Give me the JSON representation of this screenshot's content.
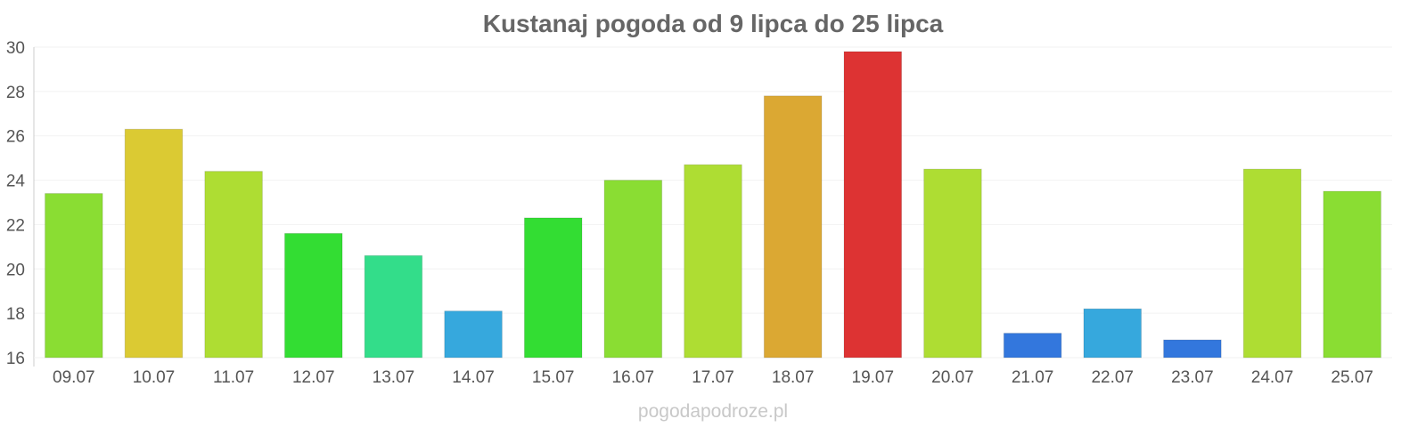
{
  "chart_data": {
    "type": "bar",
    "title": "Kustanaj pogoda od 9 lipca do 25 lipca",
    "xlabel": "",
    "ylabel": "",
    "categories": [
      "09.07",
      "10.07",
      "11.07",
      "12.07",
      "13.07",
      "14.07",
      "15.07",
      "16.07",
      "17.07",
      "18.07",
      "19.07",
      "20.07",
      "21.07",
      "22.07",
      "23.07",
      "24.07",
      "25.07"
    ],
    "values": [
      23.4,
      26.3,
      24.4,
      21.6,
      20.6,
      18.1,
      22.3,
      24.0,
      24.7,
      27.8,
      29.8,
      24.5,
      17.1,
      18.2,
      16.8,
      24.5,
      23.5
    ],
    "colors": [
      "#8add33",
      "#dbca33",
      "#aedd33",
      "#33dd33",
      "#33dd8a",
      "#36a8dd",
      "#33dd33",
      "#8add33",
      "#aedd33",
      "#dba833",
      "#dd3333",
      "#aedd33",
      "#3377dd",
      "#36a8dd",
      "#3377dd",
      "#aedd33",
      "#8add33"
    ],
    "ylim": [
      16,
      30
    ],
    "yticks": [
      16,
      18,
      20,
      22,
      24,
      26,
      28,
      30
    ],
    "grid": true,
    "legend": "none"
  },
  "watermark": "pogodapodroze.pl"
}
